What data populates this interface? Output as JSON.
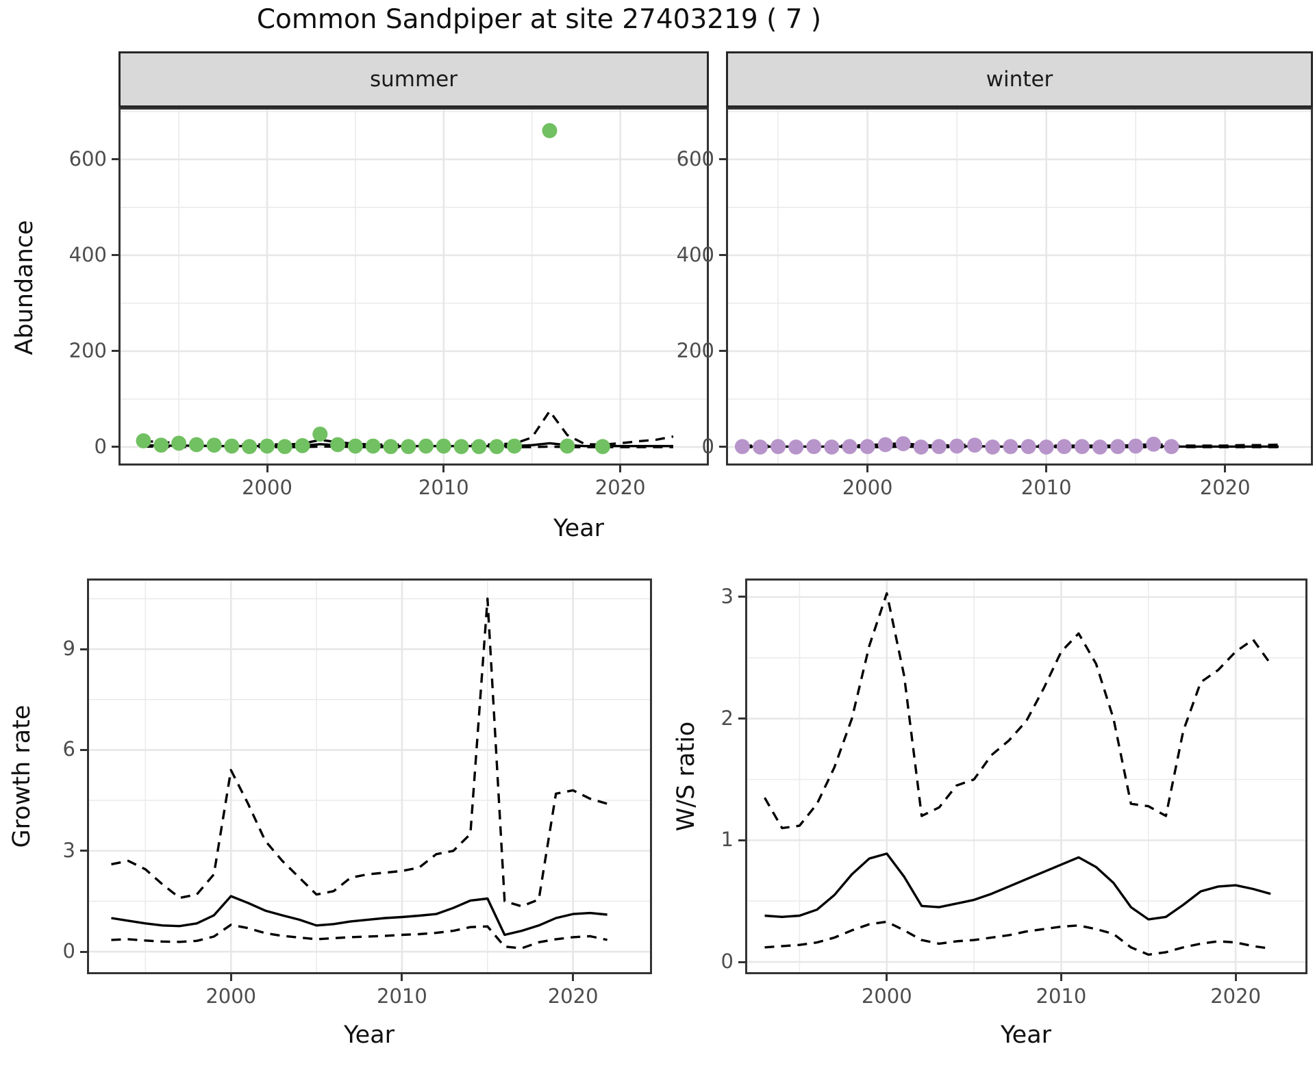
{
  "title": "Common Sandpiper at site 27403219 ( 7 )",
  "figure": {
    "abundance": {
      "ylabel": "Abundance",
      "xlabel": "Year"
    },
    "growth": {
      "ylabel": "Growth rate",
      "xlabel": "Year"
    },
    "ws": {
      "ylabel": "W/S ratio",
      "xlabel": "Year"
    }
  },
  "colors": {
    "summer_point": "#71c061",
    "winter_point": "#b795ca",
    "line": "#000000",
    "grid_major": "#e7e7e7",
    "grid_minor": "#ebebeb",
    "strip_bg": "#d9d9d9",
    "panel_border": "#333333",
    "tick_text": "#4d4d4d"
  },
  "chart_data": [
    {
      "id": "abundance-summer",
      "type": "scatter",
      "facet": "summer",
      "title": "summer",
      "xlabel": "Year",
      "ylabel": "Abundance",
      "x_domain": [
        1991.7,
        2024.9
      ],
      "y_domain": [
        -34.3,
        704
      ],
      "x_ticks": [
        2000,
        2010,
        2020
      ],
      "x_minor": [
        1995,
        2005,
        2015
      ],
      "y_ticks": [
        0,
        200,
        400,
        600
      ],
      "y_minor": [
        100,
        300,
        500,
        700
      ],
      "point_color": "#71c061",
      "points": {
        "x": [
          1993,
          1994,
          1995,
          1996,
          1997,
          1998,
          1999,
          2000,
          2001,
          2002,
          2003,
          2004,
          2005,
          2006,
          2007,
          2008,
          2009,
          2010,
          2011,
          2012,
          2013,
          2014,
          2016,
          2017,
          2019
        ],
        "y": [
          13,
          4,
          8,
          5,
          4,
          2,
          1,
          2,
          1,
          3,
          27,
          5,
          2,
          2,
          1,
          1,
          2,
          2,
          1,
          1,
          1,
          2,
          660,
          2,
          1
        ]
      },
      "series": [
        {
          "name": "median",
          "style": "solid",
          "x": [
            1993,
            1994,
            1995,
            1996,
            1997,
            1998,
            1999,
            2000,
            2001,
            2002,
            2003,
            2004,
            2005,
            2006,
            2007,
            2008,
            2009,
            2010,
            2011,
            2012,
            2013,
            2014,
            2015,
            2016,
            2017,
            2018,
            2019,
            2020,
            2021,
            2022,
            2023
          ],
          "y": [
            4,
            3,
            3,
            3,
            2,
            2,
            2,
            2,
            2,
            3,
            6,
            4,
            3,
            2,
            2,
            2,
            2,
            2,
            2,
            2,
            2,
            2,
            4,
            8,
            4,
            2,
            2,
            2,
            2,
            2,
            2
          ]
        },
        {
          "name": "upper_ci",
          "style": "dashed",
          "x": [
            1993,
            1994,
            1995,
            1996,
            1997,
            1998,
            1999,
            2000,
            2001,
            2002,
            2003,
            2004,
            2005,
            2006,
            2007,
            2008,
            2009,
            2010,
            2011,
            2012,
            2013,
            2014,
            2015,
            2016,
            2017,
            2018,
            2019,
            2020,
            2021,
            2022,
            2023
          ],
          "y": [
            13,
            10,
            9,
            8,
            7,
            6,
            5,
            6,
            5,
            7,
            15,
            10,
            7,
            5,
            5,
            5,
            5,
            5,
            5,
            5,
            6,
            7,
            20,
            75,
            25,
            6,
            5,
            8,
            12,
            15,
            22
          ]
        },
        {
          "name": "lower_ci",
          "style": "dashed",
          "x": [
            1993,
            1994,
            1995,
            1996,
            1997,
            1998,
            1999,
            2000,
            2001,
            2002,
            2003,
            2004,
            2005,
            2006,
            2007,
            2008,
            2009,
            2010,
            2011,
            2012,
            2013,
            2014,
            2015,
            2016,
            2017,
            2018,
            2019,
            2020,
            2021,
            2022,
            2023
          ],
          "y": [
            1,
            1,
            0,
            0,
            0,
            0,
            0,
            0,
            0,
            0,
            1,
            1,
            0,
            0,
            0,
            0,
            0,
            0,
            0,
            0,
            0,
            0,
            0,
            1,
            0,
            0,
            0,
            0,
            0,
            0,
            0
          ]
        }
      ]
    },
    {
      "id": "abundance-winter",
      "type": "scatter",
      "facet": "winter",
      "title": "winter",
      "xlabel": "Year",
      "ylabel": "Abundance",
      "x_domain": [
        1992.2,
        2024.8
      ],
      "y_domain": [
        -34.3,
        704
      ],
      "x_ticks": [
        2000,
        2010,
        2020
      ],
      "x_minor": [
        1995,
        2005,
        2015
      ],
      "y_ticks": [
        0,
        200,
        400,
        600
      ],
      "y_minor": [
        100,
        300,
        500,
        700
      ],
      "point_color": "#b795ca",
      "points": {
        "x": [
          1993,
          1994,
          1995,
          1996,
          1997,
          1998,
          1999,
          2000,
          2001,
          2002,
          2003,
          2004,
          2005,
          2006,
          2007,
          2008,
          2009,
          2010,
          2011,
          2012,
          2013,
          2014,
          2015,
          2016,
          2017
        ],
        "y": [
          1,
          0,
          1,
          0,
          1,
          0,
          1,
          1,
          5,
          7,
          0,
          1,
          2,
          4,
          0,
          1,
          1,
          0,
          1,
          1,
          0,
          1,
          2,
          6,
          1
        ]
      },
      "series": [
        {
          "name": "median",
          "style": "solid",
          "x": [
            1993,
            1994,
            1995,
            1996,
            1997,
            1998,
            1999,
            2000,
            2001,
            2002,
            2003,
            2004,
            2005,
            2006,
            2007,
            2008,
            2009,
            2010,
            2011,
            2012,
            2013,
            2014,
            2015,
            2016,
            2017,
            2018,
            2019,
            2020,
            2021,
            2022,
            2023
          ],
          "y": [
            1,
            1,
            1,
            1,
            1,
            1,
            1,
            1,
            2,
            3,
            1,
            1,
            1,
            2,
            1,
            1,
            1,
            1,
            1,
            1,
            1,
            1,
            1,
            2,
            1,
            1,
            1,
            1,
            1,
            1,
            1
          ]
        },
        {
          "name": "upper_ci",
          "style": "dashed",
          "x": [
            1993,
            1994,
            1995,
            1996,
            1997,
            1998,
            1999,
            2000,
            2001,
            2002,
            2003,
            2004,
            2005,
            2006,
            2007,
            2008,
            2009,
            2010,
            2011,
            2012,
            2013,
            2014,
            2015,
            2016,
            2017,
            2018,
            2019,
            2020,
            2021,
            2022,
            2023
          ],
          "y": [
            3,
            3,
            3,
            3,
            3,
            3,
            3,
            4,
            6,
            8,
            4,
            3,
            4,
            5,
            3,
            3,
            3,
            3,
            3,
            3,
            3,
            3,
            4,
            6,
            4,
            3,
            3,
            3,
            4,
            4,
            5
          ]
        },
        {
          "name": "lower_ci",
          "style": "dashed",
          "x": [
            1993,
            1994,
            1995,
            1996,
            1997,
            1998,
            1999,
            2000,
            2001,
            2002,
            2003,
            2004,
            2005,
            2006,
            2007,
            2008,
            2009,
            2010,
            2011,
            2012,
            2013,
            2014,
            2015,
            2016,
            2017,
            2018,
            2019,
            2020,
            2021,
            2022,
            2023
          ],
          "y": [
            0,
            0,
            0,
            0,
            0,
            0,
            0,
            0,
            0,
            1,
            0,
            0,
            0,
            0,
            0,
            0,
            0,
            0,
            0,
            0,
            0,
            0,
            0,
            0,
            0,
            0,
            0,
            0,
            0,
            0,
            0
          ]
        }
      ]
    },
    {
      "id": "growth",
      "type": "line",
      "title": "Growth rate",
      "xlabel": "Year",
      "ylabel": "Growth rate",
      "x_domain": [
        1991.7,
        2024.5
      ],
      "y_domain": [
        -0.61,
        11.04
      ],
      "x_ticks": [
        2000,
        2010,
        2020
      ],
      "x_minor": [
        1995,
        2005,
        2015
      ],
      "y_ticks": [
        0,
        3,
        6,
        9
      ],
      "y_minor": [
        1.5,
        4.5,
        7.5,
        10.5
      ],
      "series": [
        {
          "name": "median",
          "style": "solid",
          "x": [
            1993,
            1994,
            1995,
            1996,
            1997,
            1998,
            1999,
            2000,
            2001,
            2002,
            2003,
            2004,
            2005,
            2006,
            2007,
            2008,
            2009,
            2010,
            2011,
            2012,
            2013,
            2014,
            2015,
            2016,
            2017,
            2018,
            2019,
            2020,
            2021,
            2022
          ],
          "y": [
            1.0,
            0.92,
            0.84,
            0.78,
            0.76,
            0.84,
            1.08,
            1.65,
            1.45,
            1.22,
            1.08,
            0.95,
            0.78,
            0.82,
            0.9,
            0.95,
            1.0,
            1.03,
            1.07,
            1.12,
            1.3,
            1.52,
            1.58,
            0.5,
            0.62,
            0.78,
            1.0,
            1.12,
            1.15,
            1.1
          ]
        },
        {
          "name": "upper_ci",
          "style": "dashed",
          "x": [
            1993,
            1994,
            1995,
            1996,
            1997,
            1998,
            1999,
            2000,
            2001,
            2002,
            2003,
            2004,
            2005,
            2006,
            2007,
            2008,
            2009,
            2010,
            2011,
            2012,
            2013,
            2014,
            2015,
            2016,
            2017,
            2018,
            2019,
            2020,
            2021,
            2022
          ],
          "y": [
            2.6,
            2.7,
            2.45,
            2.0,
            1.6,
            1.7,
            2.3,
            5.4,
            4.4,
            3.3,
            2.7,
            2.2,
            1.7,
            1.8,
            2.2,
            2.3,
            2.35,
            2.4,
            2.5,
            2.9,
            3.0,
            3.5,
            10.5,
            1.5,
            1.35,
            1.55,
            4.7,
            4.8,
            4.55,
            4.4
          ]
        },
        {
          "name": "lower_ci",
          "style": "dashed",
          "x": [
            1993,
            1994,
            1995,
            1996,
            1997,
            1998,
            1999,
            2000,
            2001,
            2002,
            2003,
            2004,
            2005,
            2006,
            2007,
            2008,
            2009,
            2010,
            2011,
            2012,
            2013,
            2014,
            2015,
            2016,
            2017,
            2018,
            2019,
            2020,
            2021,
            2022
          ],
          "y": [
            0.35,
            0.37,
            0.33,
            0.3,
            0.29,
            0.32,
            0.45,
            0.8,
            0.7,
            0.55,
            0.47,
            0.42,
            0.37,
            0.4,
            0.43,
            0.45,
            0.47,
            0.5,
            0.52,
            0.56,
            0.62,
            0.73,
            0.75,
            0.15,
            0.1,
            0.28,
            0.37,
            0.43,
            0.46,
            0.35
          ]
        }
      ]
    },
    {
      "id": "ws",
      "type": "line",
      "title": "W/S ratio",
      "xlabel": "Year",
      "ylabel": "W/S ratio",
      "x_domain": [
        1992.0,
        2024.0
      ],
      "y_domain": [
        -0.084,
        3.135
      ],
      "x_ticks": [
        2000,
        2010,
        2020
      ],
      "x_minor": [
        1995,
        2005,
        2015
      ],
      "y_ticks": [
        0,
        1,
        2,
        3
      ],
      "y_minor": [
        0.5,
        1.5,
        2.5
      ],
      "series": [
        {
          "name": "median",
          "style": "solid",
          "x": [
            1993,
            1994,
            1995,
            1996,
            1997,
            1998,
            1999,
            2000,
            2001,
            2002,
            2003,
            2004,
            2005,
            2006,
            2007,
            2008,
            2009,
            2010,
            2011,
            2012,
            2013,
            2014,
            2015,
            2016,
            2017,
            2018,
            2019,
            2020,
            2021,
            2022
          ],
          "y": [
            0.38,
            0.37,
            0.38,
            0.43,
            0.55,
            0.72,
            0.85,
            0.89,
            0.7,
            0.46,
            0.45,
            0.48,
            0.51,
            0.56,
            0.62,
            0.68,
            0.74,
            0.8,
            0.86,
            0.78,
            0.65,
            0.45,
            0.35,
            0.37,
            0.47,
            0.58,
            0.62,
            0.63,
            0.6,
            0.56
          ]
        },
        {
          "name": "upper_ci",
          "style": "dashed",
          "x": [
            1993,
            1994,
            1995,
            1996,
            1997,
            1998,
            1999,
            2000,
            2001,
            2002,
            2003,
            2004,
            2005,
            2006,
            2007,
            2008,
            2009,
            2010,
            2011,
            2012,
            2013,
            2014,
            2015,
            2016,
            2017,
            2018,
            2019,
            2020,
            2021,
            2022
          ],
          "y": [
            1.35,
            1.1,
            1.12,
            1.3,
            1.6,
            2.0,
            2.6,
            3.03,
            2.35,
            1.2,
            1.27,
            1.45,
            1.5,
            1.7,
            1.82,
            1.98,
            2.25,
            2.55,
            2.7,
            2.45,
            2.0,
            1.3,
            1.28,
            1.2,
            1.9,
            2.3,
            2.4,
            2.55,
            2.65,
            2.45
          ]
        },
        {
          "name": "lower_ci",
          "style": "dashed",
          "x": [
            1993,
            1994,
            1995,
            1996,
            1997,
            1998,
            1999,
            2000,
            2001,
            2002,
            2003,
            2004,
            2005,
            2006,
            2007,
            2008,
            2009,
            2010,
            2011,
            2012,
            2013,
            2014,
            2015,
            2016,
            2017,
            2018,
            2019,
            2020,
            2021,
            2022
          ],
          "y": [
            0.12,
            0.13,
            0.14,
            0.16,
            0.2,
            0.26,
            0.31,
            0.33,
            0.26,
            0.18,
            0.15,
            0.17,
            0.18,
            0.2,
            0.22,
            0.25,
            0.27,
            0.29,
            0.3,
            0.27,
            0.23,
            0.12,
            0.06,
            0.08,
            0.12,
            0.15,
            0.17,
            0.16,
            0.13,
            0.11
          ]
        }
      ]
    }
  ]
}
